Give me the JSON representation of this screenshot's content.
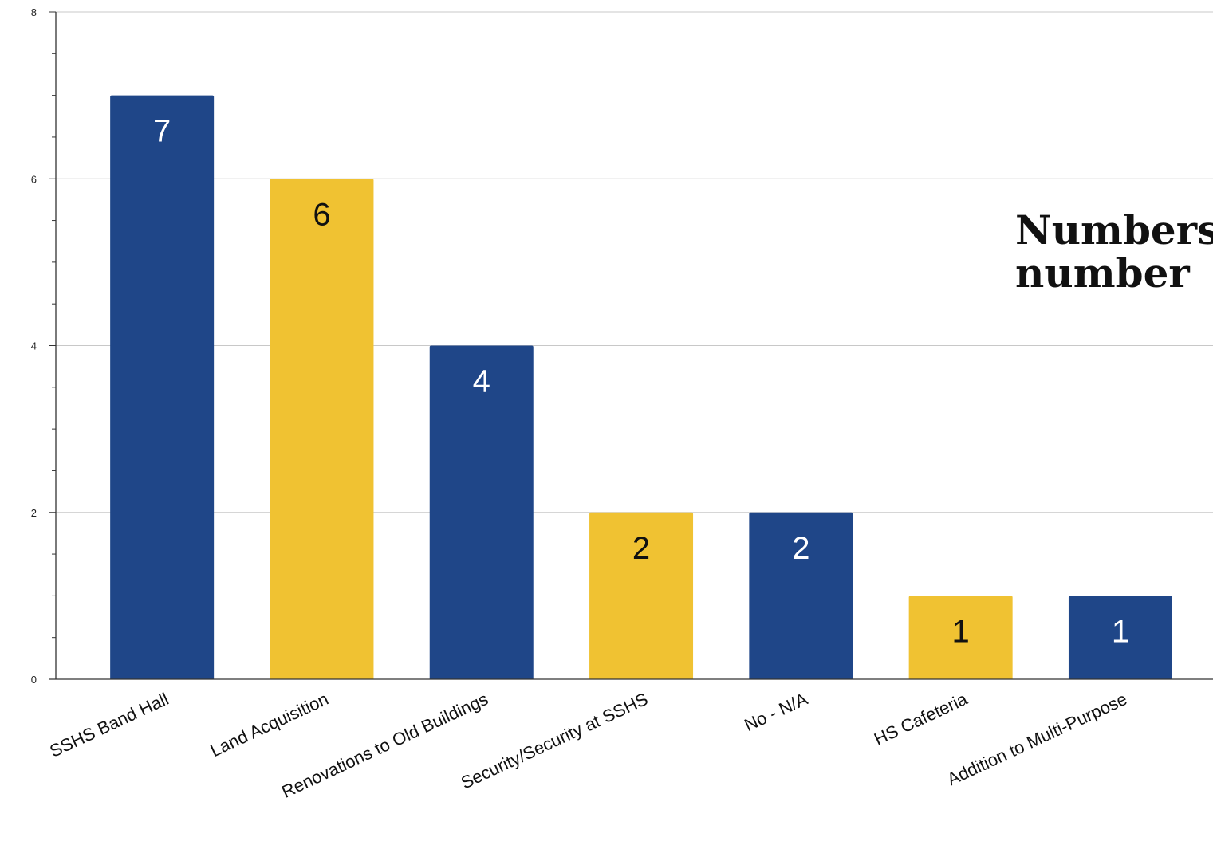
{
  "chart_data": {
    "type": "bar",
    "title_lines": [
      "Numbers",
      "number"
    ],
    "categories": [
      "SSHS Band Hall",
      "Land Acquisition",
      "Renovations to Old Buildings",
      "Security/Security at SSHS",
      "No - N/A",
      "HS Cafeteria",
      "Addition to Multi-Purpose"
    ],
    "values": [
      7,
      6,
      4,
      2,
      2,
      1,
      1
    ],
    "data_labels": [
      "7",
      "6",
      "4",
      "2",
      "2",
      "1",
      "1"
    ],
    "bar_colors": [
      "#1f4688",
      "#f0c232",
      "#1f4688",
      "#f0c232",
      "#1f4688",
      "#f0c232",
      "#1f4688"
    ],
    "label_colors": [
      "#ffffff",
      "#111111",
      "#ffffff",
      "#111111",
      "#ffffff",
      "#111111",
      "#ffffff"
    ],
    "ylim": [
      0,
      8
    ],
    "y_ticks": [
      0,
      2,
      4,
      6,
      8
    ],
    "y_tick_labels": [
      "0",
      "2",
      "4",
      "6",
      "8"
    ],
    "y_minor_step": 0.5,
    "grid": true,
    "xlabel": "",
    "ylabel": ""
  }
}
